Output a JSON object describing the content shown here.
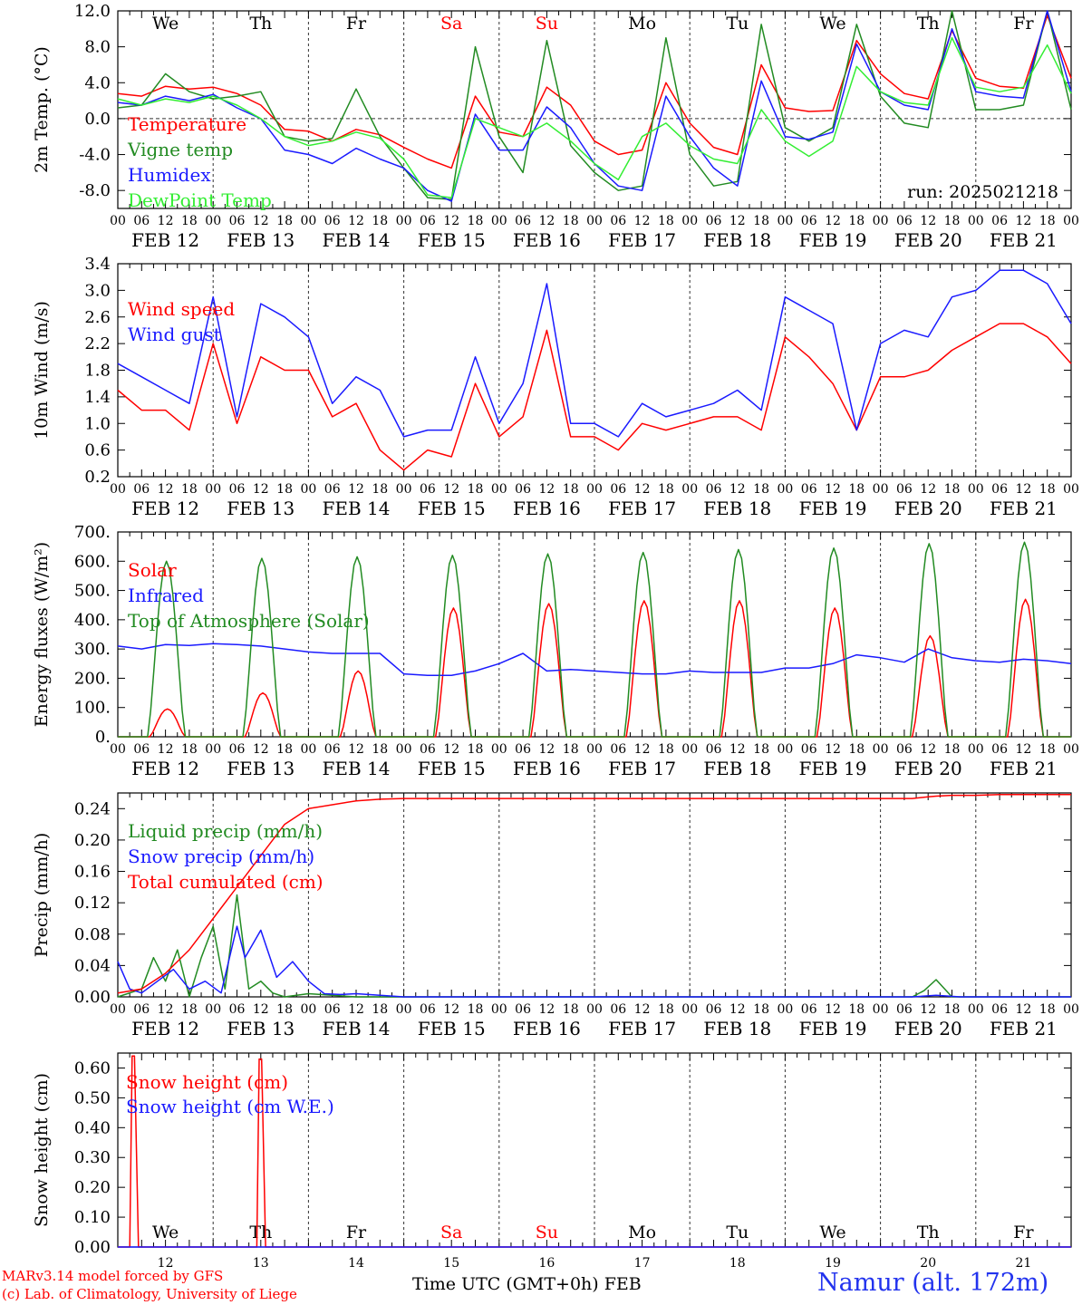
{
  "footer": {
    "credit_line1": "MARv3.14 model forced by GFS",
    "credit_line2": "(c) Lab. of Climatology, University of Liege",
    "x_axis_label": "Time UTC (GMT+0h)",
    "month_label": "FEB",
    "station": "Namur (alt. 172m)"
  },
  "colors": {
    "red": "#ff0000",
    "green": "#228b22",
    "blue": "#1a1aff",
    "lightgreen": "#33ee33",
    "weekend": "#ff0000"
  },
  "days": [
    {
      "date": "FEB 12",
      "num": "12",
      "dow": "We",
      "weekend": false
    },
    {
      "date": "FEB 13",
      "num": "13",
      "dow": "Th",
      "weekend": false
    },
    {
      "date": "FEB 14",
      "num": "14",
      "dow": "Fr",
      "weekend": false
    },
    {
      "date": "FEB 15",
      "num": "15",
      "dow": "Sa",
      "weekend": true
    },
    {
      "date": "FEB 16",
      "num": "16",
      "dow": "Su",
      "weekend": true
    },
    {
      "date": "FEB 17",
      "num": "17",
      "dow": "Mo",
      "weekend": false
    },
    {
      "date": "FEB 18",
      "num": "18",
      "dow": "Tu",
      "weekend": false
    },
    {
      "date": "FEB 19",
      "num": "19",
      "dow": "We",
      "weekend": false
    },
    {
      "date": "FEB 20",
      "num": "20",
      "dow": "Th",
      "weekend": false
    },
    {
      "date": "FEB 21",
      "num": "21",
      "dow": "Fr",
      "weekend": false
    }
  ],
  "hour_ticks": [
    "00",
    "06",
    "12",
    "18"
  ],
  "chart_data": [
    {
      "id": "temp",
      "type": "line",
      "ylabel": "2m Temp. (°C)",
      "ylim": [
        -10,
        12
      ],
      "yticks": [
        -8,
        -4,
        0,
        4,
        8,
        12
      ],
      "ytick_labels": [
        "-8.0",
        "-4.0",
        "0.0",
        "4.0",
        "8.0",
        "12.0"
      ],
      "zero_line": true,
      "x_units": "hours since FEB 12 00 UTC",
      "xlim": [
        0,
        240
      ],
      "run_label": "run: 2025021218",
      "series": [
        {
          "name": "Temperature",
          "color": "red",
          "x": [
            0,
            6,
            12,
            18,
            24,
            30,
            36,
            42,
            48,
            54,
            60,
            66,
            72,
            78,
            84,
            90,
            96,
            102,
            108,
            114,
            120,
            126,
            132,
            138,
            144,
            150,
            156,
            162,
            168,
            174,
            180,
            186,
            192,
            198,
            204,
            210,
            216,
            222,
            228,
            234,
            240
          ],
          "y": [
            2.8,
            2.5,
            3.6,
            3.3,
            3.5,
            2.8,
            1.5,
            -1.2,
            -1.4,
            -2.5,
            -1.2,
            -1.8,
            -3.2,
            -4.5,
            -5.5,
            2.5,
            -1.5,
            -2,
            3.5,
            1.5,
            -2.5,
            -4,
            -3.5,
            4,
            -0.5,
            -3.2,
            -4,
            6,
            1.2,
            0.8,
            0.9,
            8.7,
            5,
            2.8,
            2.2,
            9.8,
            4.5,
            3.6,
            3.4,
            11.5,
            4.5
          ]
        },
        {
          "name": "Vigne temp",
          "color": "green",
          "x": [
            0,
            6,
            12,
            18,
            24,
            30,
            36,
            42,
            48,
            54,
            60,
            66,
            72,
            78,
            84,
            90,
            96,
            102,
            108,
            114,
            120,
            126,
            132,
            138,
            144,
            150,
            156,
            162,
            168,
            174,
            180,
            186,
            192,
            198,
            204,
            210,
            216,
            222,
            228,
            234,
            240
          ],
          "y": [
            1.2,
            1.5,
            5,
            3,
            2.2,
            2.5,
            3,
            -2,
            -2.5,
            -2.2,
            3.3,
            -2,
            -5.5,
            -8.8,
            -9,
            8,
            -2,
            -6,
            8.7,
            -3,
            -6,
            -8,
            -7.5,
            9,
            -4,
            -7.5,
            -7,
            10.5,
            -1,
            -2.5,
            -1,
            10.5,
            2.5,
            -0.5,
            -1,
            12,
            1,
            1,
            1.5,
            12,
            1
          ]
        },
        {
          "name": "Humidex",
          "color": "blue",
          "x": [
            0,
            6,
            12,
            18,
            24,
            30,
            36,
            42,
            48,
            54,
            60,
            66,
            72,
            78,
            84,
            90,
            96,
            102,
            108,
            114,
            120,
            126,
            132,
            138,
            144,
            150,
            156,
            162,
            168,
            174,
            180,
            186,
            192,
            198,
            204,
            210,
            216,
            222,
            228,
            234,
            240
          ],
          "y": [
            1.8,
            1.5,
            2.5,
            2,
            2.7,
            1.2,
            0,
            -3.5,
            -4,
            -5,
            -3.3,
            -4.5,
            -5.5,
            -8,
            -9.2,
            0.5,
            -3.5,
            -3.5,
            1.3,
            -1,
            -5,
            -7.5,
            -8,
            2.5,
            -2,
            -5.5,
            -7.5,
            4.2,
            -2,
            -2.3,
            -1.5,
            8.3,
            3,
            1.5,
            1,
            10,
            3,
            2.5,
            2.3,
            12,
            3
          ]
        },
        {
          "name": "DewPoint Temp",
          "color": "lightgreen",
          "x": [
            0,
            6,
            12,
            18,
            24,
            30,
            36,
            42,
            48,
            54,
            60,
            66,
            72,
            78,
            84,
            90,
            96,
            102,
            108,
            114,
            120,
            126,
            132,
            138,
            144,
            150,
            156,
            162,
            168,
            174,
            180,
            186,
            192,
            198,
            204,
            210,
            216,
            222,
            228,
            234,
            240
          ],
          "y": [
            2.2,
            1.5,
            2.2,
            1.8,
            2.5,
            1.5,
            0,
            -2,
            -3,
            -2.5,
            -1.5,
            -2.2,
            -4.5,
            -8.5,
            -8.8,
            0,
            -1,
            -2,
            -0.5,
            -2.5,
            -5,
            -6.8,
            -2,
            -0.5,
            -3,
            -4.5,
            -5,
            1,
            -2.5,
            -4.2,
            -2.5,
            5.8,
            3,
            1.8,
            1.5,
            9,
            3.5,
            3,
            3.5,
            8.2,
            2.8
          ]
        }
      ]
    },
    {
      "id": "wind",
      "type": "line",
      "ylabel": "10m Wind (m/s)",
      "ylim": [
        0.2,
        3.4
      ],
      "yticks": [
        0.2,
        0.6,
        1.0,
        1.4,
        1.8,
        2.2,
        2.6,
        3.0,
        3.4
      ],
      "ytick_labels": [
        "0.2",
        "0.6",
        "1.0",
        "1.4",
        "1.8",
        "2.2",
        "2.6",
        "3.0",
        "3.4"
      ],
      "x_units": "hours since FEB 12 00 UTC",
      "xlim": [
        0,
        240
      ],
      "series": [
        {
          "name": "Wind speed",
          "color": "red",
          "x": [
            0,
            6,
            12,
            18,
            24,
            30,
            36,
            42,
            48,
            54,
            60,
            66,
            72,
            78,
            84,
            90,
            96,
            102,
            108,
            114,
            120,
            126,
            132,
            138,
            144,
            150,
            156,
            162,
            168,
            174,
            180,
            186,
            192,
            198,
            204,
            210,
            216,
            222,
            228,
            234,
            240
          ],
          "y": [
            1.5,
            1.2,
            1.2,
            0.9,
            2.2,
            1,
            2,
            1.8,
            1.8,
            1.1,
            1.3,
            0.6,
            0.3,
            0.6,
            0.5,
            1.6,
            0.8,
            1.1,
            2.4,
            0.8,
            0.8,
            0.6,
            1,
            0.9,
            1,
            1.1,
            1.1,
            0.9,
            2.3,
            2,
            1.6,
            0.9,
            1.7,
            1.7,
            1.8,
            2.1,
            2.3,
            2.5,
            2.5,
            2.3,
            1.9
          ]
        },
        {
          "name": "Wind gust",
          "color": "blue",
          "x": [
            0,
            6,
            12,
            18,
            24,
            30,
            36,
            42,
            48,
            54,
            60,
            66,
            72,
            78,
            84,
            90,
            96,
            102,
            108,
            114,
            120,
            126,
            132,
            138,
            144,
            150,
            156,
            162,
            168,
            174,
            180,
            186,
            192,
            198,
            204,
            210,
            216,
            222,
            228,
            234,
            240
          ],
          "y": [
            1.9,
            1.7,
            1.5,
            1.3,
            2.9,
            1.1,
            2.8,
            2.6,
            2.3,
            1.3,
            1.7,
            1.5,
            0.8,
            0.9,
            0.9,
            2,
            1,
            1.6,
            3.1,
            1,
            1,
            0.8,
            1.3,
            1.1,
            1.2,
            1.3,
            1.5,
            1.2,
            2.9,
            2.7,
            2.5,
            0.9,
            2.2,
            2.4,
            2.3,
            2.9,
            3,
            3.3,
            3.3,
            3.1,
            2.5
          ]
        }
      ]
    },
    {
      "id": "energy",
      "type": "line",
      "ylabel": "Energy fluxes (W/m²)",
      "ylim": [
        0,
        700
      ],
      "yticks": [
        0,
        100,
        200,
        300,
        400,
        500,
        600,
        700
      ],
      "ytick_labels": [
        "0.",
        "100.",
        "200.",
        "300.",
        "400.",
        "500.",
        "600.",
        "700."
      ],
      "x_units": "hours since FEB 12 00 UTC",
      "xlim": [
        0,
        240
      ],
      "series": [
        {
          "name": "Solar",
          "color": "red",
          "daily_peaks": [
            95,
            150,
            225,
            440,
            455,
            465,
            465,
            440,
            345,
            470
          ],
          "daily_hours": [
            8,
            17
          ]
        },
        {
          "name": "Infrared",
          "color": "blue",
          "x": [
            0,
            6,
            12,
            18,
            24,
            30,
            36,
            42,
            48,
            54,
            60,
            66,
            72,
            78,
            84,
            90,
            96,
            102,
            108,
            114,
            120,
            126,
            132,
            138,
            144,
            150,
            156,
            162,
            168,
            174,
            180,
            186,
            192,
            198,
            204,
            210,
            216,
            222,
            228,
            234,
            240
          ],
          "y": [
            310,
            300,
            315,
            312,
            318,
            315,
            310,
            300,
            290,
            285,
            285,
            285,
            215,
            210,
            210,
            225,
            250,
            285,
            225,
            230,
            225,
            220,
            215,
            215,
            225,
            220,
            220,
            220,
            235,
            235,
            250,
            280,
            270,
            255,
            300,
            270,
            260,
            255,
            265,
            260,
            250
          ]
        },
        {
          "name": "Top of Atmosphere (Solar)",
          "color": "green",
          "daily_peaks": [
            600,
            610,
            615,
            620,
            625,
            630,
            640,
            645,
            660,
            665
          ],
          "daily_hours": [
            7.5,
            17
          ]
        }
      ]
    },
    {
      "id": "precip",
      "type": "line",
      "ylabel": "Precip (mm/h)",
      "ylim": [
        0,
        0.26
      ],
      "yticks": [
        0,
        0.04,
        0.08,
        0.12,
        0.16,
        0.2,
        0.24
      ],
      "ytick_labels": [
        "0.00",
        "0.04",
        "0.08",
        "0.12",
        "0.16",
        "0.20",
        "0.24"
      ],
      "x_units": "hours since FEB 12 00 UTC",
      "xlim": [
        0,
        240
      ],
      "series": [
        {
          "name": "Liquid precip (mm/h)",
          "color": "green",
          "x": [
            0,
            6,
            9,
            12,
            15,
            18,
            21,
            24,
            27,
            30,
            33,
            36,
            39,
            42,
            48,
            54,
            60,
            66,
            72,
            200,
            203,
            206,
            210,
            240
          ],
          "y": [
            0,
            0.01,
            0.05,
            0.02,
            0.06,
            0,
            0.05,
            0.09,
            0.01,
            0.13,
            0.01,
            0.02,
            0.005,
            0,
            0.004,
            0.002,
            0,
            0,
            0,
            0,
            0.008,
            0.022,
            0,
            0
          ]
        },
        {
          "name": "Snow precip (mm/h)",
          "color": "blue",
          "x": [
            0,
            3,
            6,
            10,
            14,
            18,
            22,
            26,
            30,
            32,
            36,
            40,
            44,
            48,
            52,
            56,
            60,
            66,
            72,
            200,
            206,
            212,
            240
          ],
          "y": [
            0.045,
            0.01,
            0.005,
            0.02,
            0.035,
            0.01,
            0.02,
            0.005,
            0.09,
            0.05,
            0.085,
            0.025,
            0.045,
            0.02,
            0.004,
            0.003,
            0.004,
            0.002,
            0,
            0,
            0.002,
            0,
            0
          ]
        },
        {
          "name": "Total cumulated (cm)",
          "color": "red",
          "x": [
            0,
            6,
            12,
            18,
            24,
            30,
            36,
            42,
            48,
            54,
            60,
            66,
            72,
            80,
            90,
            200,
            204,
            206,
            210,
            216,
            222,
            240
          ],
          "y": [
            0.005,
            0.01,
            0.03,
            0.06,
            0.1,
            0.14,
            0.18,
            0.22,
            0.24,
            0.245,
            0.25,
            0.252,
            0.253,
            0.253,
            0.253,
            0.253,
            0.255,
            0.256,
            0.257,
            0.257,
            0.258,
            0.258
          ]
        }
      ]
    },
    {
      "id": "snow",
      "type": "line",
      "ylabel": "Snow height (cm)",
      "ylim": [
        0,
        0.65
      ],
      "yticks": [
        0,
        0.1,
        0.2,
        0.3,
        0.4,
        0.5,
        0.6
      ],
      "ytick_labels": [
        "0.00",
        "0.10",
        "0.20",
        "0.30",
        "0.40",
        "0.50",
        "0.60"
      ],
      "x_units": "hours since FEB 12 00 UTC",
      "xlim": [
        0,
        240
      ],
      "series": [
        {
          "name": "Snow height (cm)",
          "color": "red",
          "x": [
            0,
            3,
            3.6,
            4.2,
            5.2,
            35,
            35.6,
            36.2,
            37.2,
            240
          ],
          "y": [
            0,
            0,
            0.64,
            0.64,
            0,
            0,
            0.63,
            0.63,
            0,
            0
          ]
        },
        {
          "name": "Snow height (cm W.E.)",
          "color": "blue",
          "x": [
            0,
            240
          ],
          "y": [
            0,
            0
          ]
        }
      ]
    }
  ]
}
